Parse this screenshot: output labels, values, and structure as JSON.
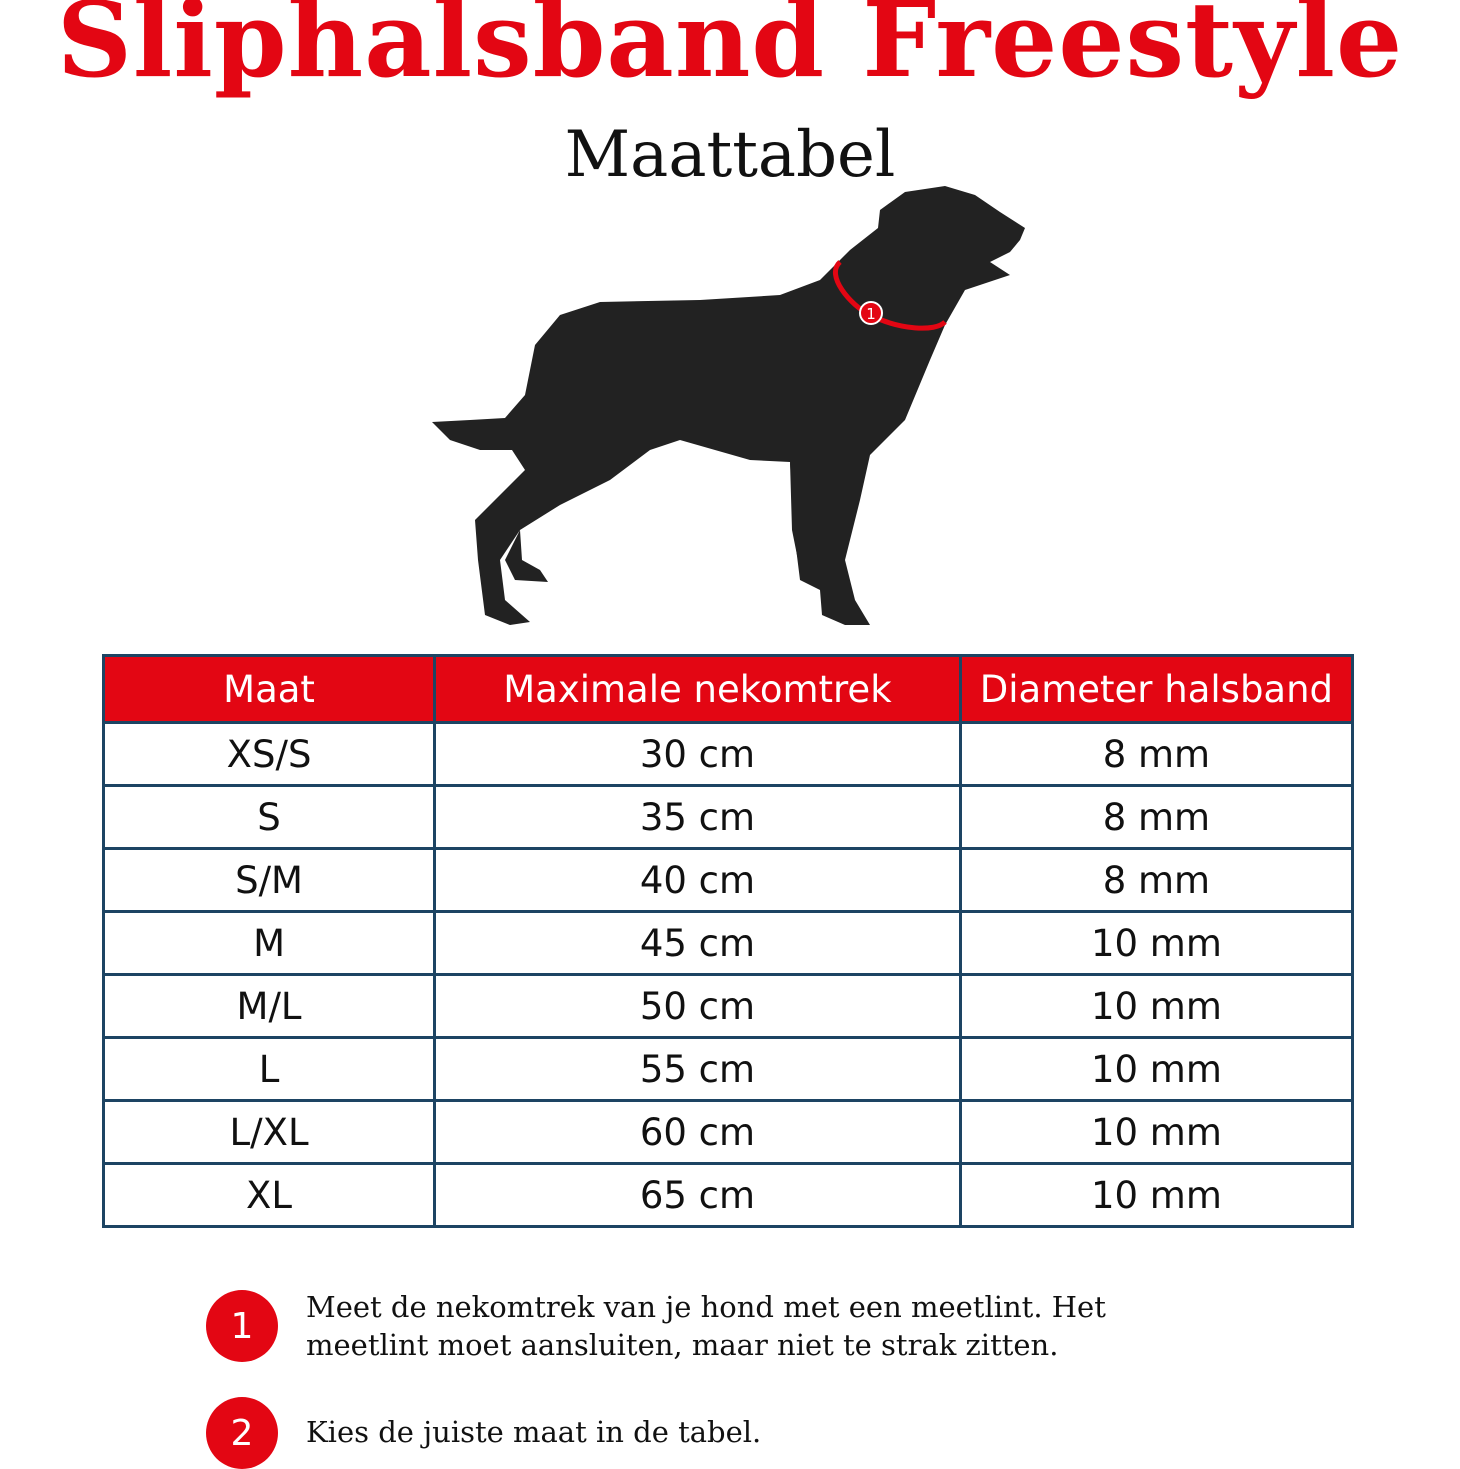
{
  "title": "Sliphalsband Freestyle",
  "subtitle": "Maattabel",
  "illustration": {
    "subject": "dog-silhouette",
    "collar_marker": "1",
    "accent": "#e30613"
  },
  "table": {
    "headers": [
      "Maat",
      "Maximale nekomtrek",
      "Diameter halsband"
    ],
    "rows": [
      [
        "XS/S",
        "30 cm",
        "8 mm"
      ],
      [
        "S",
        "35 cm",
        "8 mm"
      ],
      [
        "S/M",
        "40 cm",
        "8 mm"
      ],
      [
        "M",
        "45 cm",
        "10 mm"
      ],
      [
        "M/L",
        "50 cm",
        "10 mm"
      ],
      [
        "L",
        "55 cm",
        "10 mm"
      ],
      [
        "L/XL",
        "60 cm",
        "10 mm"
      ],
      [
        "XL",
        "65 cm",
        "10 mm"
      ]
    ]
  },
  "steps": [
    {
      "number": "1",
      "text": "Meet de nekomtrek van je hond met een meetlint. Het meetlint moet aansluiten, maar niet te strak zitten."
    },
    {
      "number": "2",
      "text": "Kies de juiste maat in de tabel."
    }
  ]
}
